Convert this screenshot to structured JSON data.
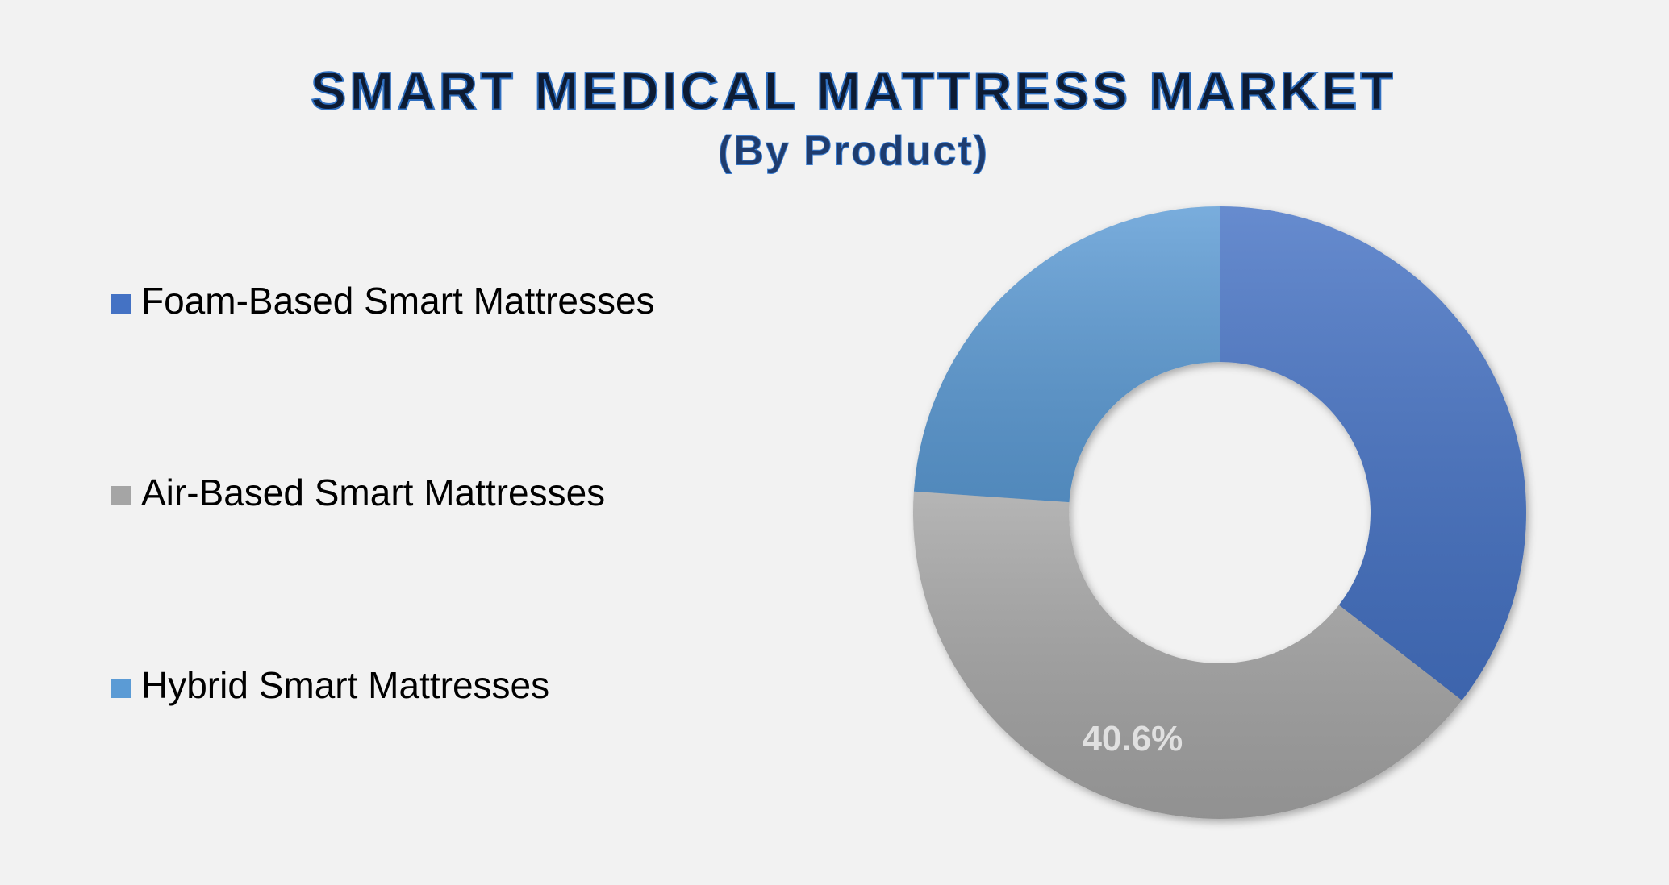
{
  "chart_data": {
    "type": "donut",
    "title": "SMART MEDICAL MATTRESS MARKET",
    "subtitle": "(By Product)",
    "categories": [
      "Foam-Based Smart Mattresses",
      "Air-Based Smart Mattresses",
      "Hybrid Smart Mattresses"
    ],
    "values": [
      35.5,
      40.6,
      23.9
    ],
    "value_labels": [
      null,
      "40.6%",
      null
    ],
    "colors": [
      "#4472c4",
      "#a5a5a5",
      "#5b9bd5"
    ],
    "legend": "left"
  }
}
